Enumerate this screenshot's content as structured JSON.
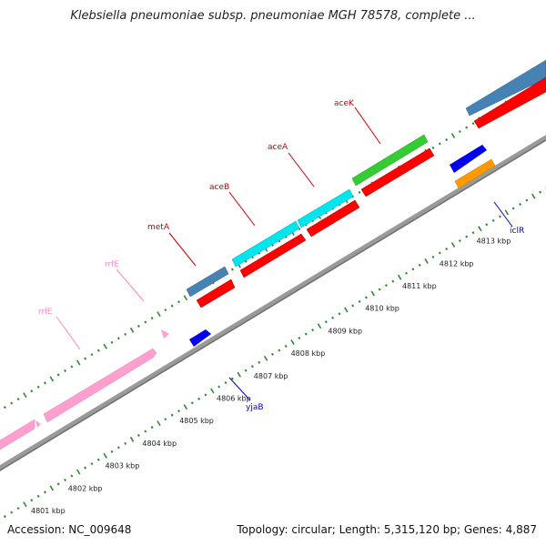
{
  "title": "Klebsiella pneumoniae subsp. pneumoniae MGH 78578, complete ...",
  "footer": {
    "accession": "Accession: NC_009648",
    "topology": "Topology: circular; Length: 5,315,120 bp; Genes: 4,887"
  },
  "scale": {
    "unit": "kbp",
    "ticks": [
      {
        "kbp": 4801,
        "label": "4801 kbp"
      },
      {
        "kbp": 4802,
        "label": "4802 kbp"
      },
      {
        "kbp": 4803,
        "label": "4803 kbp"
      },
      {
        "kbp": 4804,
        "label": "4804 kbp"
      },
      {
        "kbp": 4805,
        "label": "4805 kbp"
      },
      {
        "kbp": 4806,
        "label": "4806 kbp"
      },
      {
        "kbp": 4807,
        "label": "4807 kbp"
      },
      {
        "kbp": 4808,
        "label": "4808 kbp"
      },
      {
        "kbp": 4809,
        "label": "4809 kbp"
      },
      {
        "kbp": 4810,
        "label": "4810 kbp"
      },
      {
        "kbp": 4811,
        "label": "4811 kbp"
      },
      {
        "kbp": 4812,
        "label": "4812 kbp"
      },
      {
        "kbp": 4813,
        "label": "4813 kbp"
      }
    ]
  },
  "colors": {
    "backbone": "#8a8a8a",
    "tick": "#2e8b2e",
    "cds": "#ff0000",
    "rrna": "#ff99cc",
    "tag_blue": "#4682b4",
    "tag_cyan": "#00e5ee",
    "tag_green": "#33cc33",
    "reverse_blue": "#0000ee",
    "reverse_orange": "#ff9900",
    "label_red": "#cc0000",
    "label_pink": "#ff88bb",
    "label_blue": "#0000cc"
  },
  "features": {
    "labels": [
      {
        "name": "rrlE",
        "color": "#ff88bb"
      },
      {
        "name": "rrfE",
        "color": "#ff88bb"
      },
      {
        "name": "metA",
        "color": "#cc0000"
      },
      {
        "name": "aceB",
        "color": "#cc0000"
      },
      {
        "name": "aceA",
        "color": "#cc0000"
      },
      {
        "name": "aceK",
        "color": "#cc0000"
      },
      {
        "name": "yjaB",
        "color": "#0000cc"
      },
      {
        "name": "iclR",
        "color": "#0000cc"
      }
    ]
  }
}
